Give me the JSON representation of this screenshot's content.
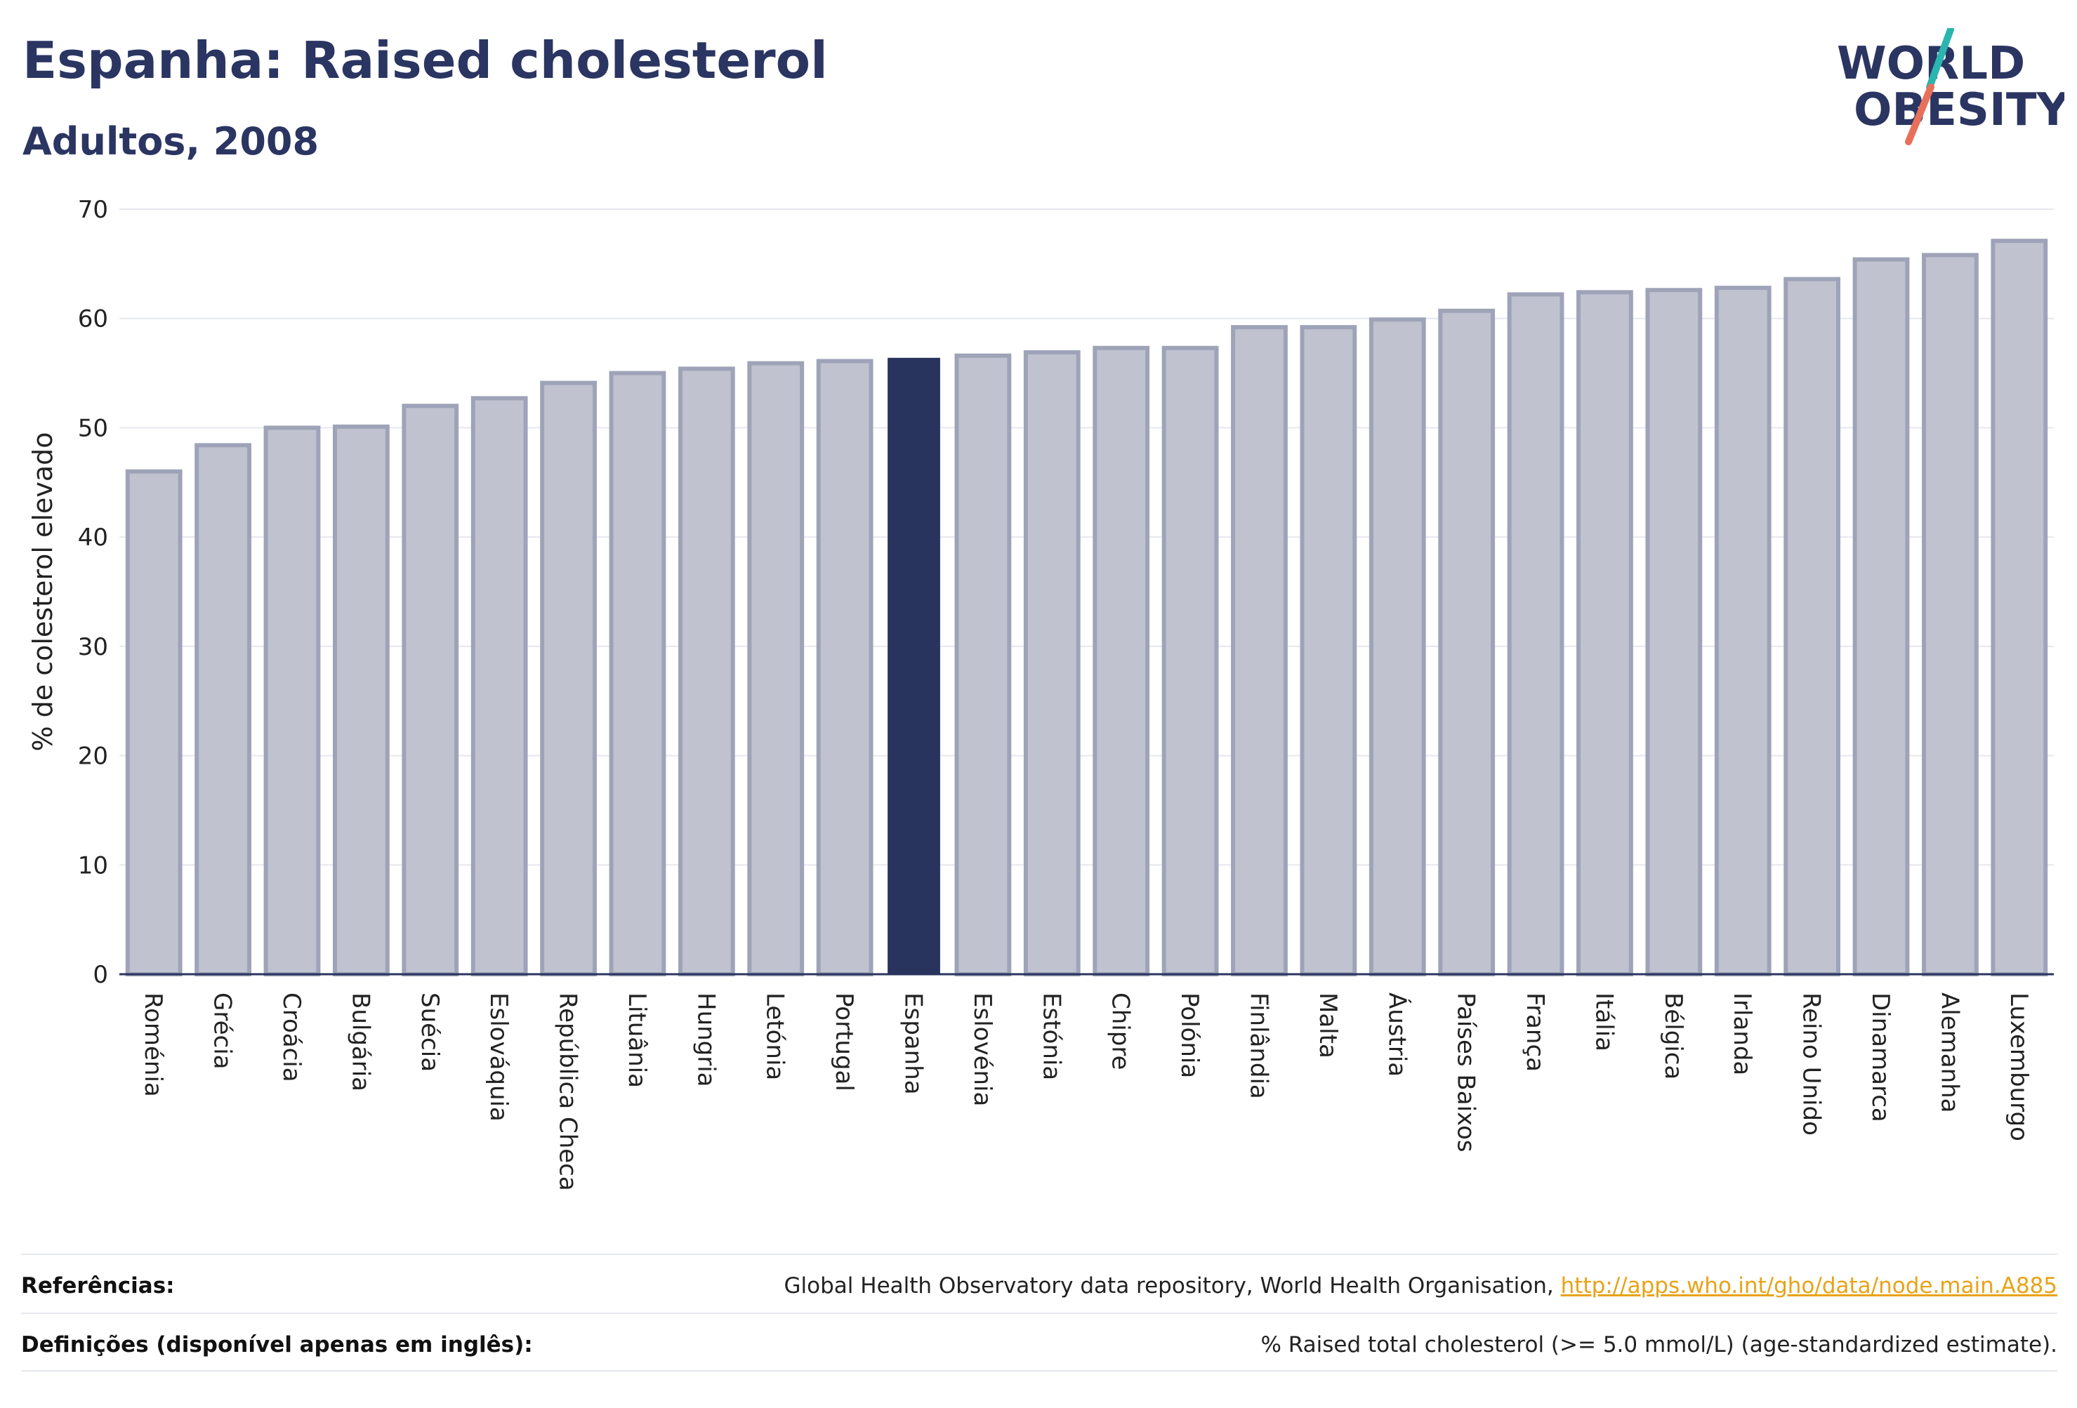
{
  "header": {
    "title": "Espanha: Raised cholesterol",
    "subtitle": "Adultos, 2008"
  },
  "logo": {
    "line1": "WORLD",
    "line2": "OBESITY",
    "accent_colors": [
      "#2bb5b0",
      "#e8705a"
    ],
    "text_color": "#2b3562"
  },
  "colors": {
    "bar": "#c0c3cf",
    "bar_stroke": "#9ea3b8",
    "highlight": "#29345e",
    "grid": "#e6e8ef",
    "axis": "#2a3560"
  },
  "chart_data": {
    "type": "bar",
    "ylabel": "% de colesterol elevado",
    "ylim": [
      0,
      70
    ],
    "yticks": [
      0,
      10,
      20,
      30,
      40,
      50,
      60,
      70
    ],
    "grid": true,
    "highlight": "Espanha",
    "categories": [
      "Roménia",
      "Grécia",
      "Croácia",
      "Bulgária",
      "Suécia",
      "Eslováquia",
      "República Checa",
      "Lituânia",
      "Hungria",
      "Letónia",
      "Portugal",
      "Espanha",
      "Eslovénia",
      "Estónia",
      "Chipre",
      "Polónia",
      "Finlândia",
      "Malta",
      "Áustria",
      "Países Baixos",
      "França",
      "Itália",
      "Bélgica",
      "Irlanda",
      "Reino Unido",
      "Dinamarca",
      "Alemanha",
      "Luxemburgo"
    ],
    "values": [
      46.0,
      48.4,
      50.0,
      50.1,
      52.0,
      52.7,
      54.1,
      55.0,
      55.4,
      55.9,
      56.1,
      56.4,
      56.6,
      56.9,
      57.3,
      57.3,
      59.2,
      59.2,
      59.9,
      60.7,
      62.2,
      62.4,
      62.6,
      62.8,
      63.6,
      65.4,
      65.8,
      67.1
    ]
  },
  "footer": {
    "references_label": "Referências:",
    "references_text": "Global Health Observatory data repository, World Health Organisation, ",
    "references_link": "http://apps.who.int/gho/data/node.main.A885",
    "definitions_label": "Definições (disponível apenas em inglês):",
    "definitions_text": "% Raised total cholesterol (>= 5.0 mmol/L) (age-standardized estimate)."
  }
}
